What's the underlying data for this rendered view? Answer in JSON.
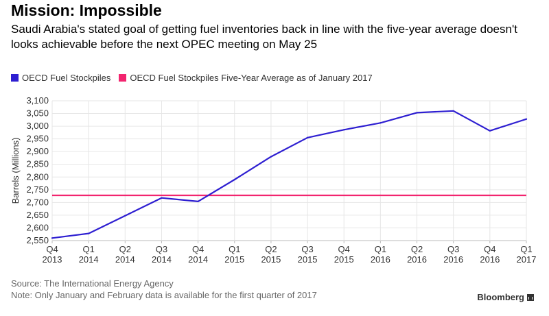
{
  "title": "Mission: Impossible",
  "subtitle": "Saudi Arabia's stated goal of getting fuel inventories back in line with the five-year average doesn't looks achievable before the next OPEC meeting on May 25",
  "legend": [
    {
      "label": "OECD Fuel Stockpiles",
      "color": "#2e1fd1"
    },
    {
      "label": "OECD Fuel Stockpiles Five-Year Average as of January 2017",
      "color": "#f2256f"
    }
  ],
  "chart_data": {
    "type": "line",
    "ylabel": "Barrels (Millions)",
    "xlabel": "",
    "ylim": [
      2550,
      3100
    ],
    "yticks": [
      2550,
      2600,
      2650,
      2700,
      2750,
      2800,
      2850,
      2900,
      2950,
      3000,
      3050,
      3100
    ],
    "ytick_labels": [
      "2,550",
      "2,600",
      "2,650",
      "2,700",
      "2,750",
      "2,800",
      "2,850",
      "2,900",
      "2,950",
      "3,000",
      "3,050",
      "3,100"
    ],
    "categories": [
      [
        "Q4",
        "2013"
      ],
      [
        "Q1",
        "2014"
      ],
      [
        "Q2",
        "2014"
      ],
      [
        "Q3",
        "2014"
      ],
      [
        "Q4",
        "2014"
      ],
      [
        "Q1",
        "2015"
      ],
      [
        "Q2",
        "2015"
      ],
      [
        "Q3",
        "2015"
      ],
      [
        "Q4",
        "2015"
      ],
      [
        "Q1",
        "2016"
      ],
      [
        "Q2",
        "2016"
      ],
      [
        "Q3",
        "2016"
      ],
      [
        "Q4",
        "2016"
      ],
      [
        "Q1",
        "2017"
      ]
    ],
    "series": [
      {
        "name": "OECD Fuel Stockpiles",
        "color": "#2e1fd1",
        "values": [
          2560,
          2578,
          2648,
          2718,
          2704,
          2790,
          2880,
          2955,
          2986,
          3013,
          3053,
          3060,
          2982,
          3028
        ]
      }
    ],
    "reference_lines": [
      {
        "name": "OECD Fuel Stockpiles Five-Year Average as of January 2017",
        "color": "#f2256f",
        "value": 2728
      }
    ],
    "grid": true
  },
  "footer": {
    "source": "Source: The International Energy Agency",
    "note": "Note: Only January and February data is available for the first quarter of 2017"
  },
  "brand": "Bloomberg"
}
